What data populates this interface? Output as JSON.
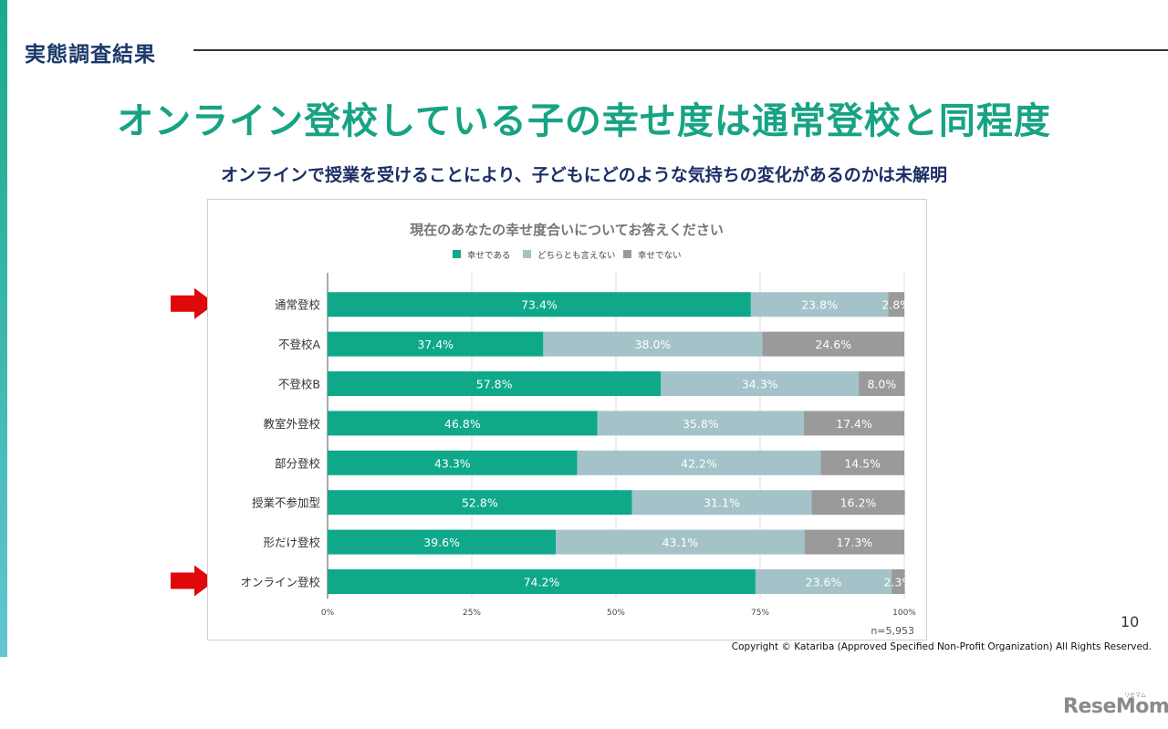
{
  "slide": {
    "section_title": "実態調査結果",
    "main_title": "オンライン登校している子の幸せ度は通常登校と同程度",
    "subtitle": "オンラインで授業を受けることにより、子どもにどのような気持ちの変化があるのかは未解明",
    "page_number": "10",
    "copyright": "Copyright © Katariba (Approved Specified Non-Profit Organization) All Rights Reserved.",
    "watermark": "ReseMom",
    "watermark_sub": "リセマム",
    "accent_color": "#17a384",
    "highlight_arrow_color": "#e0080b",
    "highlighted_categories": [
      "通常登校",
      "オンライン登校"
    ]
  },
  "chart_data": {
    "type": "bar",
    "orientation": "horizontal",
    "stacked": "percent",
    "title": "現在のあなたの幸せ度合いについてお答えください",
    "legend_position": "top",
    "categories": [
      "通常登校",
      "不登校A",
      "不登校B",
      "教室外登校",
      "部分登校",
      "授業不参加型",
      "形だけ登校",
      "オンライン登校"
    ],
    "series": [
      {
        "name": "幸せである",
        "color": "#0fa98a",
        "values": [
          73.4,
          37.4,
          57.8,
          46.8,
          43.3,
          52.8,
          39.6,
          74.2
        ]
      },
      {
        "name": "どちらとも言えない",
        "color": "#a3c3c9",
        "values": [
          23.8,
          38.0,
          34.3,
          35.8,
          42.2,
          31.1,
          43.1,
          23.6
        ]
      },
      {
        "name": "幸せでない",
        "color": "#9a9a9a",
        "values": [
          2.8,
          24.6,
          8.0,
          17.4,
          14.5,
          16.2,
          17.3,
          2.3
        ]
      }
    ],
    "xlim": [
      0,
      100
    ],
    "x_ticks": [
      "0%",
      "25%",
      "50%",
      "75%",
      "100%"
    ],
    "x_tick_values": [
      0,
      25,
      50,
      75,
      100
    ],
    "xlabel": "",
    "ylabel": "",
    "grid": true,
    "note": "n=5,953"
  }
}
